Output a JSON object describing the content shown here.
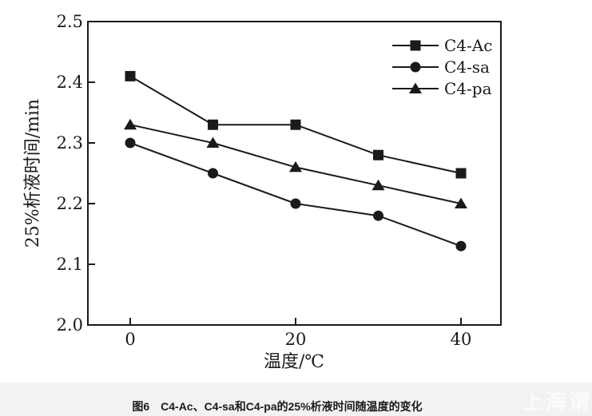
{
  "figure": {
    "caption": "图6　C4-Ac、C4-sa和C4-pa的25%析液时间随温度的变化",
    "watermark": "上海谓",
    "ink_color": "#1a1a1a",
    "caption_band_color": "#f2f2f2"
  },
  "chart_data": {
    "type": "line",
    "title": "",
    "xlabel": "温度/℃",
    "ylabel": "25%析液时间/min",
    "x": [
      0,
      10,
      20,
      30,
      40
    ],
    "xticks": [
      0,
      20,
      40
    ],
    "xticklabels": [
      "0",
      "20",
      "40"
    ],
    "xlim": [
      -5.1,
      44.8
    ],
    "ylim": [
      2.0,
      2.5
    ],
    "yticks": [
      2.0,
      2.1,
      2.2,
      2.3,
      2.4,
      2.5
    ],
    "yticklabels": [
      "2.0",
      "2.1",
      "2.2",
      "2.3",
      "2.4",
      "2.5"
    ],
    "grid": false,
    "legend_position": "top-right-inside",
    "series": [
      {
        "name": "C4-Ac",
        "marker": "square",
        "values": [
          2.41,
          2.33,
          2.33,
          2.28,
          2.25
        ]
      },
      {
        "name": "C4-sa",
        "marker": "circle",
        "values": [
          2.3,
          2.25,
          2.2,
          2.18,
          2.13
        ]
      },
      {
        "name": "C4-pa",
        "marker": "triangle",
        "values": [
          2.33,
          2.3,
          2.26,
          2.23,
          2.2
        ]
      }
    ]
  }
}
